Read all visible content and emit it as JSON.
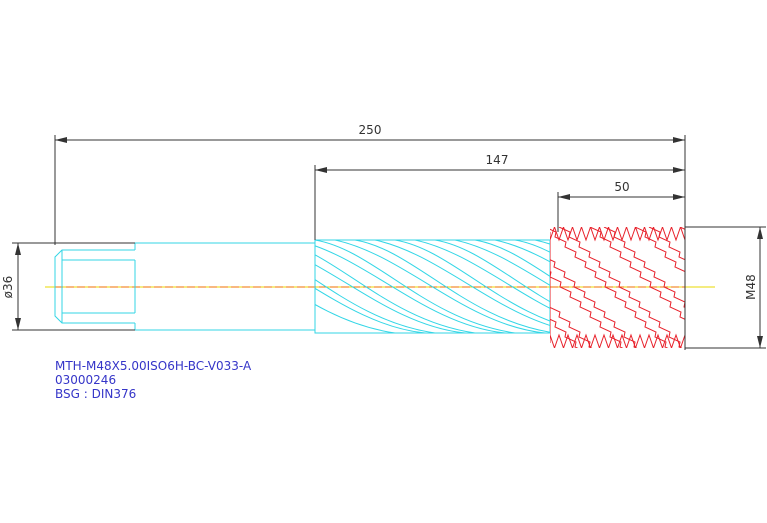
{
  "dimensions": [
    {
      "label": "250"
    },
    {
      "label": "147"
    },
    {
      "label": "50"
    },
    {
      "label": "ø36"
    },
    {
      "label": "M48"
    }
  ],
  "title_block": {
    "lines": [
      "MTH-M48X5.00ISO6H-BC-V033-A",
      "03000246",
      "BSG : DIN376"
    ]
  }
}
